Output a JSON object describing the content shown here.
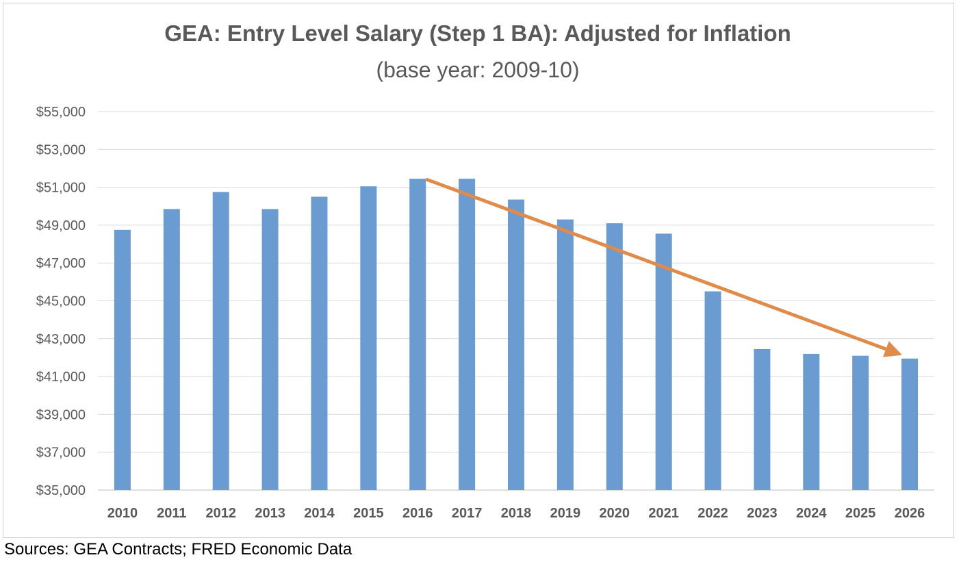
{
  "colors": {
    "bar": "#6a9bd1",
    "trend_arrow": "#e08b4a",
    "grid": "#d9d9d9",
    "text": "#595959"
  },
  "source_note": "Sources: GEA Contracts; FRED Economic Data",
  "chart_data": {
    "type": "bar",
    "title": "GEA: Entry Level Salary (Step 1 BA): Adjusted for Inflation",
    "subtitle": "(base year: 2009-10)",
    "xlabel": "",
    "ylabel": "",
    "categories": [
      "2010",
      "2011",
      "2012",
      "2013",
      "2014",
      "2015",
      "2016",
      "2017",
      "2018",
      "2019",
      "2020",
      "2021",
      "2022",
      "2023",
      "2024",
      "2025",
      "2026"
    ],
    "values": [
      48750,
      49850,
      50750,
      49850,
      50500,
      51050,
      51450,
      51450,
      50350,
      49300,
      49100,
      48550,
      45500,
      42450,
      42200,
      42100,
      41950
    ],
    "ylim": [
      35000,
      55000
    ],
    "yticks": [
      35000,
      37000,
      39000,
      41000,
      43000,
      45000,
      47000,
      49000,
      51000,
      53000,
      55000
    ],
    "ytick_labels": [
      "$35,000",
      "$37,000",
      "$39,000",
      "$41,000",
      "$43,000",
      "$45,000",
      "$47,000",
      "$49,000",
      "$51,000",
      "$53,000",
      "$55,000"
    ],
    "grid": true,
    "legend": "none",
    "annotations": [
      {
        "type": "trend-arrow",
        "from": {
          "x": "2016",
          "y": 51400
        },
        "to": {
          "x": "2026",
          "y": 42200
        }
      }
    ]
  }
}
